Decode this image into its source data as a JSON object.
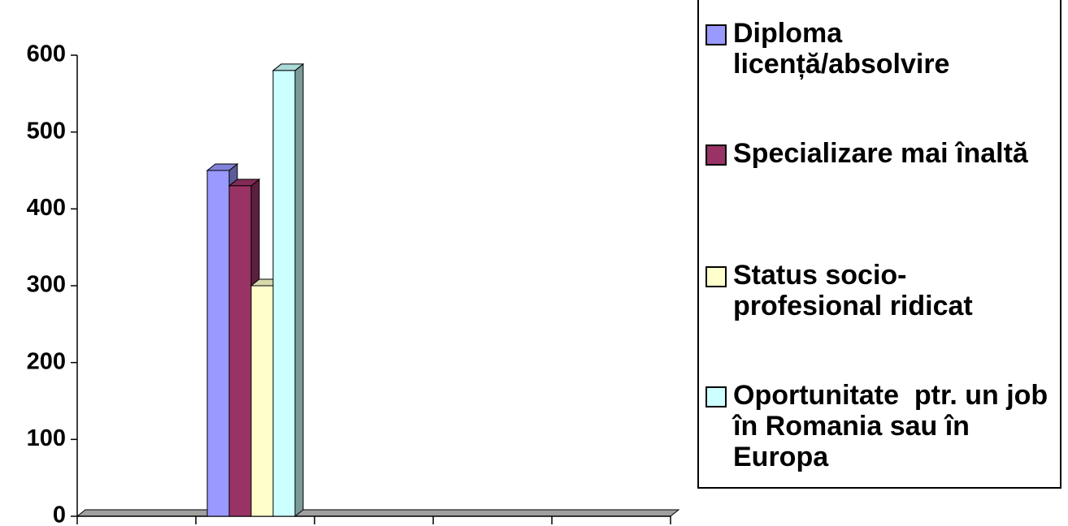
{
  "chart_data": {
    "type": "bar3d",
    "categories": [
      null,
      null,
      null,
      null,
      null
    ],
    "series": [
      {
        "name": "Diploma licență/absolvire",
        "color": "#9999ff",
        "values": [
          null,
          450,
          null,
          null,
          null
        ]
      },
      {
        "name": "Specializare mai înaltă",
        "color": "#993366",
        "values": [
          null,
          430,
          null,
          null,
          null
        ]
      },
      {
        "name": "Status socio-profesional ridicat",
        "color": "#ffffcc",
        "values": [
          null,
          300,
          null,
          null,
          null
        ]
      },
      {
        "name": "Oportunitate  ptr. un job în Romania sau în Europa",
        "color": "#ccffff",
        "values": [
          null,
          580,
          null,
          null,
          null
        ]
      }
    ],
    "ylim": [
      0,
      600
    ],
    "yticks": [
      0,
      100,
      200,
      300,
      400,
      500,
      600
    ],
    "legend": "right"
  }
}
